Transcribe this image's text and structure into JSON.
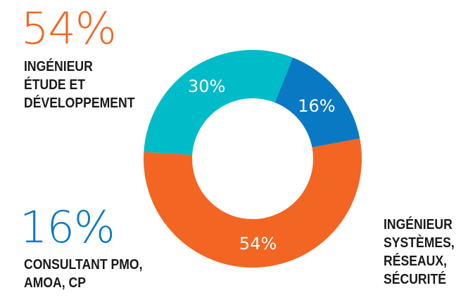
{
  "chart_data": {
    "type": "pie",
    "categories": [
      "INGÉNIEUR ÉTUDE ET DÉVELOPPEMENT",
      "INGÉNIEUR SYSTÈMES, RÉSEAUX, SÉCURITÉ",
      "CONSULTANT PMO, AMOA, CP"
    ],
    "values": [
      54,
      30,
      16
    ],
    "slice_labels": [
      "54%",
      "30%",
      "16%"
    ],
    "colors": [
      "#f26522",
      "#00bcc8",
      "#0a79c3"
    ],
    "donut": true
  },
  "callouts": {
    "top": {
      "pct": "54%",
      "color": "#f26522",
      "lines": [
        "INGÉNIEUR",
        "ÉTUDE ET",
        "DÉVELOPPEMENT"
      ]
    },
    "left": {
      "pct": "16%",
      "color": "#0a79c3",
      "lines": [
        "CONSULTANT PMO,",
        "AMOA, CP"
      ]
    },
    "right": {
      "lines": [
        "INGÉNIEUR",
        "SYSTÈMES,",
        "RÉSEAUX,",
        "SÉCURITÉ"
      ]
    }
  }
}
